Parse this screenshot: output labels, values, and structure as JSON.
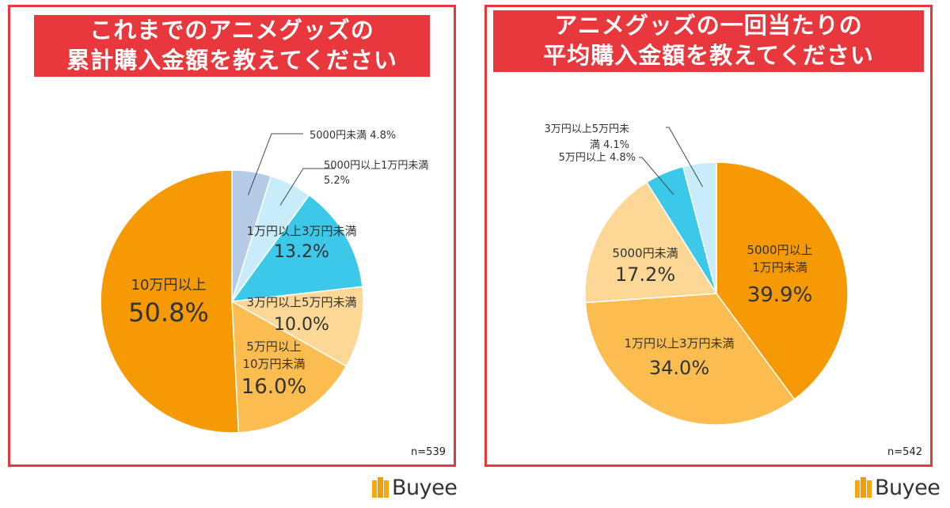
{
  "left": {
    "title_line1": "これまでのアニメグッズの",
    "title_line2": "累計購入金額を教えてください",
    "n": "n=539"
  },
  "right": {
    "title_line1": "アニメグッズの一回当たりの",
    "title_line2": "平均購入金額を教えてください",
    "n": "n=542"
  },
  "logo_text": "Buyee",
  "colors": {
    "title_bg": "#e8383d",
    "orange_dark": "#f59a05",
    "orange_mid": "#fbbd50",
    "orange_light": "#fdd795",
    "cyan": "#3cc8e8",
    "light_blue": "#bfe8f8",
    "gray_blue": "#b5cbe6"
  },
  "chart_data": [
    {
      "type": "pie",
      "title": "これまでのアニメグッズの累計購入金額を教えてください",
      "slices": [
        {
          "label_lines": [
            "5000円未満 4.8%"
          ],
          "pct_text": "",
          "value": 4.8,
          "color": "#b5cbe6",
          "leader": true
        },
        {
          "label_lines": [
            "5000円以上1万円未満",
            "5.2%"
          ],
          "pct_text": "",
          "value": 5.2,
          "color": "#c8ecfa",
          "leader": true
        },
        {
          "label_lines": [
            "1万円以上3万円未満"
          ],
          "pct_text": "13.2%",
          "value": 13.2,
          "color": "#3cc8e8",
          "leader": false
        },
        {
          "label_lines": [
            "3万円以上5万円未満"
          ],
          "pct_text": "10.0%",
          "value": 10.0,
          "color": "#fdd795",
          "leader": false
        },
        {
          "label_lines": [
            "5万円以上",
            "10万円未満"
          ],
          "pct_text": "16.0%",
          "value": 16.0,
          "color": "#fbbd50",
          "leader": false
        },
        {
          "label_lines": [
            "10万円以上"
          ],
          "pct_text": "50.8%",
          "value": 50.8,
          "color": "#f59a05",
          "leader": false
        }
      ],
      "n": "n=539"
    },
    {
      "type": "pie",
      "title": "アニメグッズの一回当たりの平均購入金額を教えてください",
      "slices": [
        {
          "label_lines": [
            "5000円以上",
            "1万円未満"
          ],
          "pct_text": "39.9%",
          "value": 39.9,
          "color": "#f59a05",
          "leader": false
        },
        {
          "label_lines": [
            "1万円以上3万円未満"
          ],
          "pct_text": "34.0%",
          "value": 34.0,
          "color": "#fbbd50",
          "leader": false
        },
        {
          "label_lines": [
            "5000円未満"
          ],
          "pct_text": "17.2%",
          "value": 17.2,
          "color": "#fdd795",
          "leader": false
        },
        {
          "label_lines": [
            "5万円以上 4.8%"
          ],
          "pct_text": "",
          "value": 4.8,
          "color": "#3cc8e8",
          "leader": true
        },
        {
          "label_lines": [
            "3万円以上5万円未",
            "満 4.1%"
          ],
          "pct_text": "",
          "value": 4.1,
          "color": "#c8ecfa",
          "leader": true
        }
      ],
      "n": "n=542"
    }
  ]
}
